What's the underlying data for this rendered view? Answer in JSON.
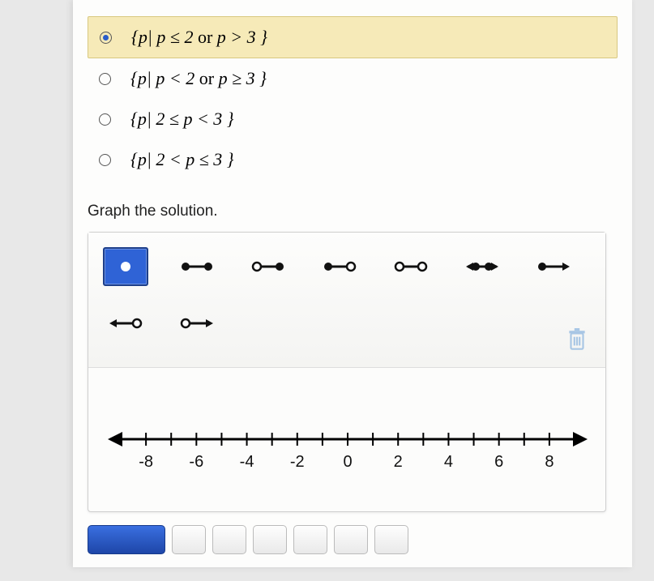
{
  "options": [
    {
      "selected": true,
      "expr_html": "{<i>p</i>| <i>p</i> ≤ 2 <span class='rm'>or</span> <i>p</i> &gt; 3 }"
    },
    {
      "selected": false,
      "expr_html": "{<i>p</i>| <i>p</i> &lt; 2 <span class='rm'>or</span> <i>p</i> ≥ 3 }"
    },
    {
      "selected": false,
      "expr_html": "{<i>p</i>| 2 ≤ <i>p</i> &lt; 3 }"
    },
    {
      "selected": false,
      "expr_html": "{<i>p</i>| 2 &lt; <i>p</i> ≤ 3 }"
    }
  ],
  "prompt": "Graph the solution.",
  "tools": {
    "row1": [
      {
        "name": "point-closed",
        "selected": true
      },
      {
        "name": "segment-closed-closed",
        "selected": false
      },
      {
        "name": "segment-open-closed",
        "selected": false
      },
      {
        "name": "segment-closed-open",
        "selected": false
      },
      {
        "name": "segment-open-open",
        "selected": false
      },
      {
        "name": "line-closed-closed",
        "selected": false
      },
      {
        "name": "ray-right-closed",
        "selected": false
      }
    ],
    "row2": [
      {
        "name": "ray-left-open",
        "selected": false
      },
      {
        "name": "ray-right-open",
        "selected": false
      }
    ]
  },
  "numberline": {
    "min": -9,
    "max": 9,
    "tick_step": 1,
    "labels": [
      -8,
      -6,
      -4,
      -2,
      0,
      2,
      4,
      6,
      8
    ],
    "axis_color": "#000000",
    "label_fontsize": 20,
    "label_font": "Arial, Helvetica, sans-serif"
  },
  "colors": {
    "selected_option_bg": "#f6eab8",
    "selected_tool_bg": "#2f63d6",
    "panel_border": "#cfcfcf",
    "page_bg": "#fdfdfc"
  }
}
